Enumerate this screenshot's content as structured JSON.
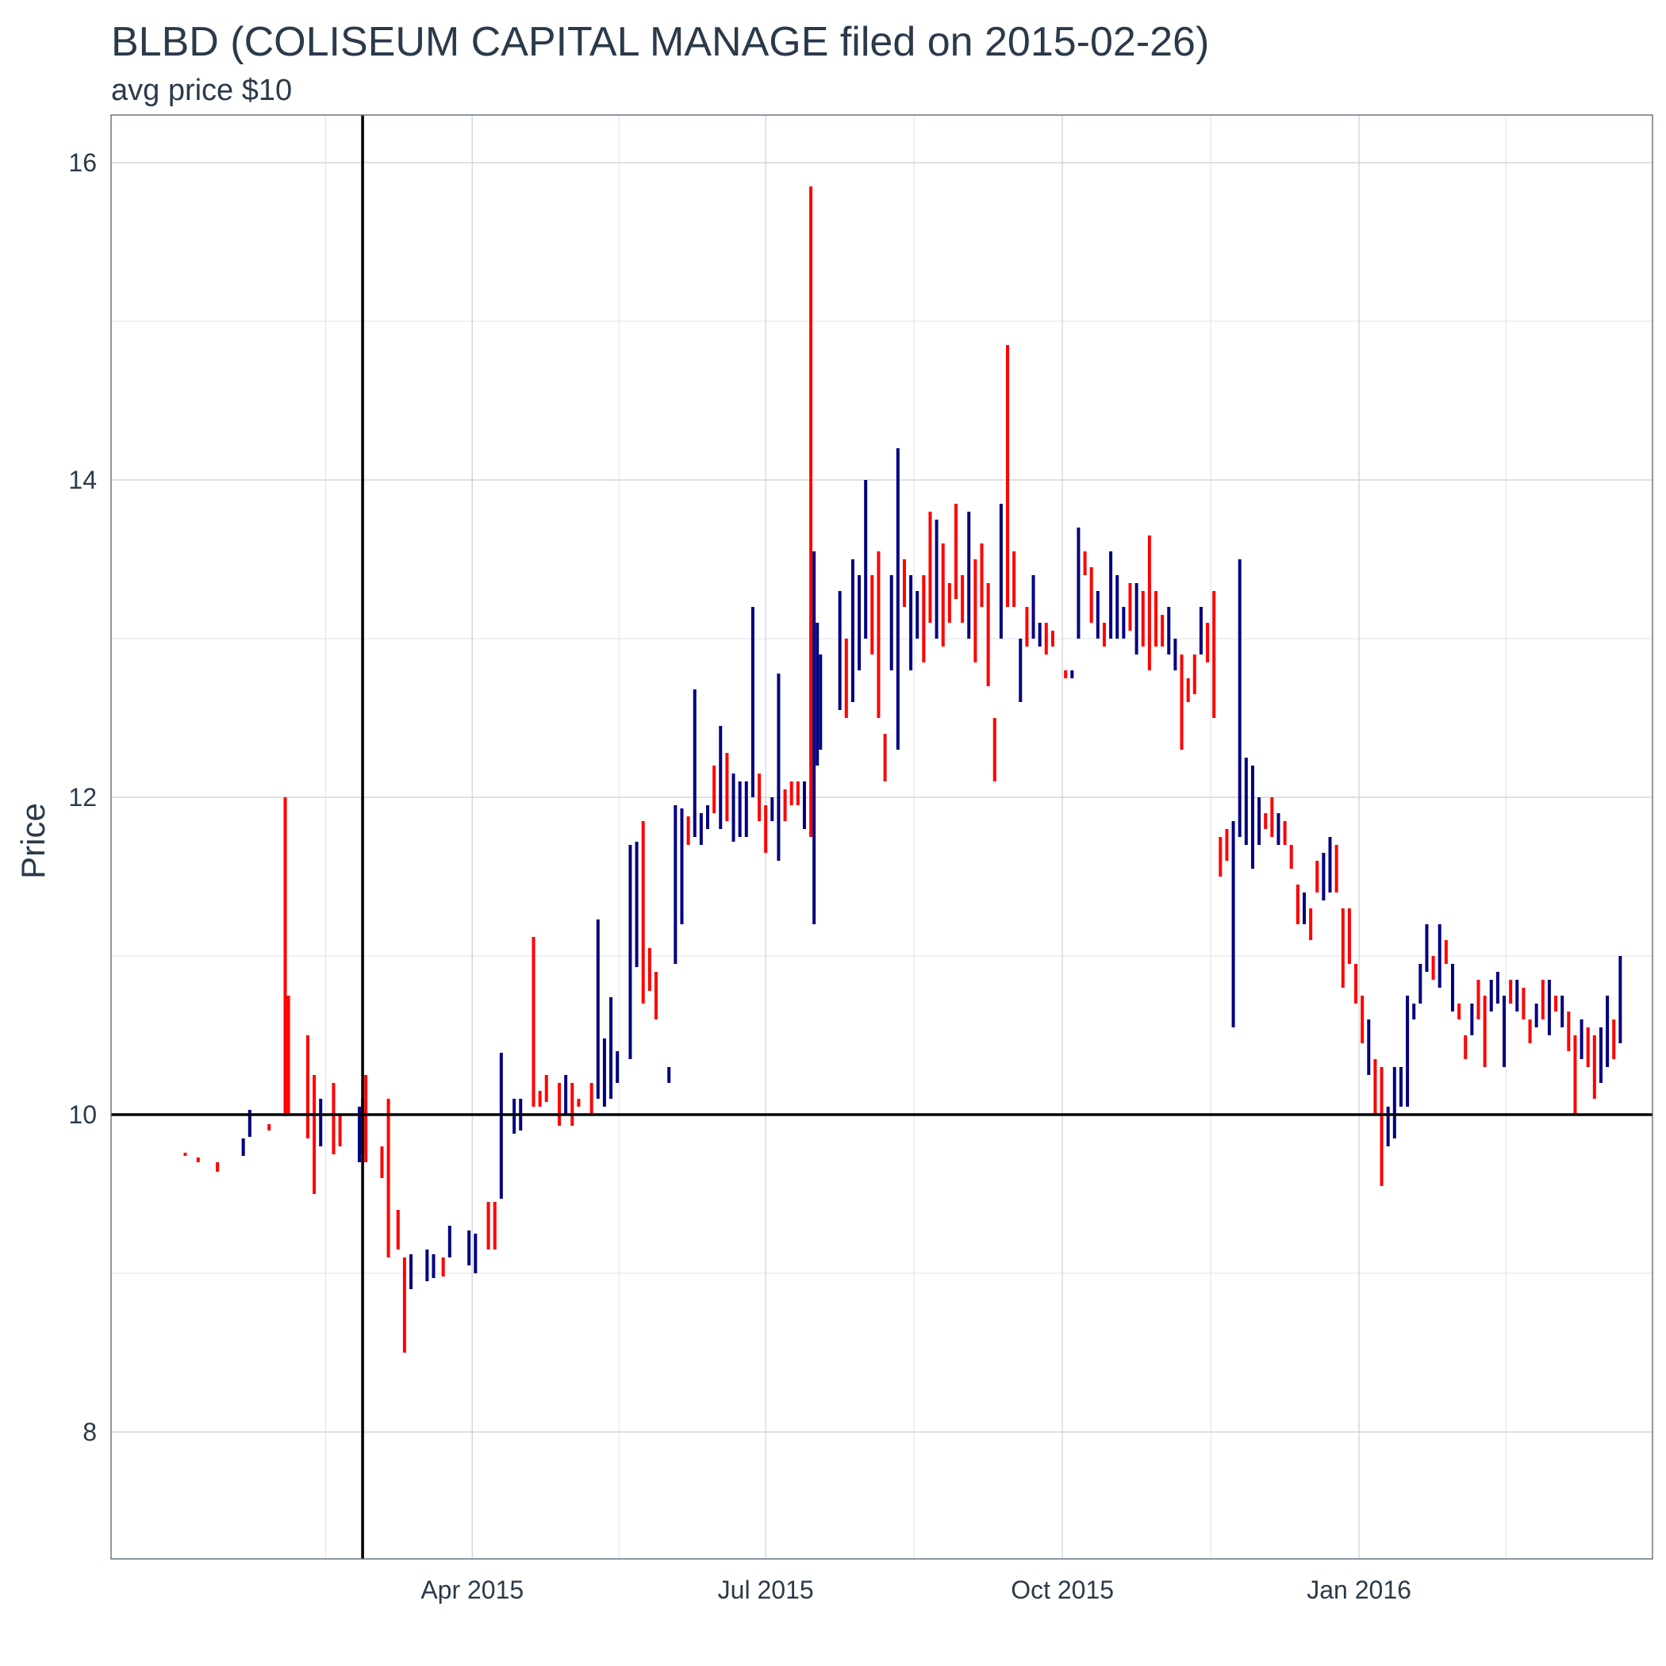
{
  "chart_data": {
    "type": "ohlc",
    "title": "BLBD (COLISEUM CAPITAL MANAGE filed on 2015-02-26)",
    "subtitle": "avg price $10",
    "ylabel": "Price",
    "xlabel": "",
    "xlim": [
      "2014-12-10",
      "2016-04-01"
    ],
    "ylim": [
      7.2,
      16.3
    ],
    "x_ticks": [
      {
        "date": "2015-04-01",
        "label": "Apr 2015"
      },
      {
        "date": "2015-07-01",
        "label": "Jul 2015"
      },
      {
        "date": "2015-10-01",
        "label": "Oct 2015"
      },
      {
        "date": "2016-01-01",
        "label": "Jan 2016"
      }
    ],
    "y_ticks": [
      8,
      10,
      12,
      14,
      16
    ],
    "grid": true,
    "legend": "none",
    "colors": {
      "up": "#00007f",
      "down": "#ff0000",
      "reference": "#000000",
      "text": "#2b3a4a",
      "grid": "#d3d6da"
    },
    "reference_lines": {
      "vertical_date": "2015-02-26",
      "horizontal_price": 10
    },
    "bars": [
      [
        "2015-01-02",
        9.76,
        9.74,
        "down"
      ],
      [
        "2015-01-06",
        9.73,
        9.7,
        "down"
      ],
      [
        "2015-01-12",
        9.7,
        9.64,
        "down"
      ],
      [
        "2015-01-20",
        9.85,
        9.74,
        "up"
      ],
      [
        "2015-01-22",
        10.03,
        9.86,
        "up"
      ],
      [
        "2015-01-28",
        9.94,
        9.9,
        "down"
      ],
      [
        "2015-02-02",
        12.0,
        9.99,
        "down"
      ],
      [
        "2015-02-03",
        10.75,
        10.0,
        "down"
      ],
      [
        "2015-02-09",
        10.5,
        9.85,
        "down"
      ],
      [
        "2015-02-11",
        10.25,
        9.5,
        "down"
      ],
      [
        "2015-02-13",
        10.1,
        9.8,
        "up"
      ],
      [
        "2015-02-17",
        10.2,
        9.75,
        "down"
      ],
      [
        "2015-02-19",
        10.0,
        9.8,
        "down"
      ],
      [
        "2015-02-25",
        10.05,
        9.7,
        "up"
      ],
      [
        "2015-02-26",
        10.1,
        9.75,
        "down"
      ],
      [
        "2015-02-27",
        10.25,
        9.7,
        "down"
      ],
      [
        "2015-03-04",
        9.8,
        9.6,
        "down"
      ],
      [
        "2015-03-06",
        10.1,
        9.1,
        "down"
      ],
      [
        "2015-03-09",
        9.4,
        9.15,
        "down"
      ],
      [
        "2015-03-11",
        9.1,
        8.5,
        "down"
      ],
      [
        "2015-03-13",
        9.12,
        8.9,
        "up"
      ],
      [
        "2015-03-18",
        9.15,
        8.95,
        "up"
      ],
      [
        "2015-03-20",
        9.12,
        8.97,
        "up"
      ],
      [
        "2015-03-23",
        9.1,
        8.98,
        "down"
      ],
      [
        "2015-03-25",
        9.3,
        9.1,
        "up"
      ],
      [
        "2015-03-31",
        9.27,
        9.05,
        "up"
      ],
      [
        "2015-04-02",
        9.25,
        9.0,
        "up"
      ],
      [
        "2015-04-06",
        9.45,
        9.15,
        "down"
      ],
      [
        "2015-04-08",
        9.45,
        9.15,
        "down"
      ],
      [
        "2015-04-10",
        10.39,
        9.47,
        "up"
      ],
      [
        "2015-04-14",
        10.1,
        9.88,
        "up"
      ],
      [
        "2015-04-16",
        10.1,
        9.9,
        "up"
      ],
      [
        "2015-04-20",
        11.12,
        10.05,
        "down"
      ],
      [
        "2015-04-22",
        10.15,
        10.05,
        "down"
      ],
      [
        "2015-04-24",
        10.25,
        10.08,
        "down"
      ],
      [
        "2015-04-28",
        10.2,
        9.93,
        "down"
      ],
      [
        "2015-04-30",
        10.25,
        10.0,
        "up"
      ],
      [
        "2015-05-02",
        10.2,
        9.93,
        "down"
      ],
      [
        "2015-05-04",
        10.1,
        10.05,
        "down"
      ],
      [
        "2015-05-08",
        10.2,
        10.0,
        "down"
      ],
      [
        "2015-05-10",
        11.23,
        10.1,
        "up"
      ],
      [
        "2015-05-12",
        10.48,
        10.05,
        "up"
      ],
      [
        "2015-05-14",
        10.74,
        10.1,
        "up"
      ],
      [
        "2015-05-16",
        10.4,
        10.2,
        "up"
      ],
      [
        "2015-05-20",
        11.7,
        10.35,
        "up"
      ],
      [
        "2015-05-22",
        11.72,
        10.93,
        "up"
      ],
      [
        "2015-05-24",
        11.85,
        10.7,
        "down"
      ],
      [
        "2015-05-26",
        11.05,
        10.78,
        "down"
      ],
      [
        "2015-05-28",
        10.9,
        10.6,
        "down"
      ],
      [
        "2015-06-01",
        10.3,
        10.2,
        "up"
      ],
      [
        "2015-06-03",
        11.95,
        10.95,
        "up"
      ],
      [
        "2015-06-05",
        11.93,
        11.2,
        "up"
      ],
      [
        "2015-06-07",
        11.88,
        11.7,
        "down"
      ],
      [
        "2015-06-09",
        12.68,
        11.75,
        "up"
      ],
      [
        "2015-06-11",
        11.9,
        11.7,
        "up"
      ],
      [
        "2015-06-13",
        11.95,
        11.8,
        "up"
      ],
      [
        "2015-06-15",
        12.2,
        11.9,
        "down"
      ],
      [
        "2015-06-17",
        12.45,
        11.8,
        "up"
      ],
      [
        "2015-06-19",
        12.28,
        11.85,
        "down"
      ],
      [
        "2015-06-21",
        12.15,
        11.72,
        "up"
      ],
      [
        "2015-06-23",
        12.1,
        11.75,
        "up"
      ],
      [
        "2015-06-25",
        12.1,
        11.75,
        "up"
      ],
      [
        "2015-06-27",
        13.2,
        12.0,
        "up"
      ],
      [
        "2015-06-29",
        12.15,
        11.85,
        "down"
      ],
      [
        "2015-07-01",
        11.95,
        11.65,
        "down"
      ],
      [
        "2015-07-03",
        12.0,
        11.85,
        "up"
      ],
      [
        "2015-07-05",
        12.78,
        11.6,
        "up"
      ],
      [
        "2015-07-07",
        12.05,
        11.85,
        "down"
      ],
      [
        "2015-07-09",
        12.1,
        11.95,
        "down"
      ],
      [
        "2015-07-11",
        12.1,
        11.95,
        "down"
      ],
      [
        "2015-07-13",
        12.1,
        11.8,
        "up"
      ],
      [
        "2015-07-15",
        15.85,
        11.75,
        "down"
      ],
      [
        "2015-07-16",
        13.55,
        11.2,
        "up"
      ],
      [
        "2015-07-17",
        13.1,
        12.2,
        "up"
      ],
      [
        "2015-07-18",
        12.9,
        12.3,
        "up"
      ],
      [
        "2015-07-24",
        13.3,
        12.55,
        "up"
      ],
      [
        "2015-07-26",
        13.0,
        12.5,
        "down"
      ],
      [
        "2015-07-28",
        13.5,
        12.6,
        "up"
      ],
      [
        "2015-07-30",
        13.4,
        12.8,
        "up"
      ],
      [
        "2015-08-01",
        14.0,
        13.0,
        "up"
      ],
      [
        "2015-08-03",
        13.4,
        12.9,
        "down"
      ],
      [
        "2015-08-05",
        13.55,
        12.5,
        "down"
      ],
      [
        "2015-08-07",
        12.4,
        12.1,
        "down"
      ],
      [
        "2015-08-09",
        13.4,
        12.8,
        "up"
      ],
      [
        "2015-08-11",
        14.2,
        12.3,
        "up"
      ],
      [
        "2015-08-13",
        13.5,
        13.2,
        "down"
      ],
      [
        "2015-08-15",
        13.4,
        12.8,
        "up"
      ],
      [
        "2015-08-17",
        13.3,
        13.0,
        "up"
      ],
      [
        "2015-08-19",
        13.4,
        12.85,
        "down"
      ],
      [
        "2015-08-21",
        13.8,
        13.1,
        "down"
      ],
      [
        "2015-08-23",
        13.75,
        13.0,
        "up"
      ],
      [
        "2015-08-25",
        13.6,
        12.95,
        "down"
      ],
      [
        "2015-08-27",
        13.35,
        13.1,
        "down"
      ],
      [
        "2015-08-29",
        13.85,
        13.25,
        "down"
      ],
      [
        "2015-08-31",
        13.4,
        13.1,
        "down"
      ],
      [
        "2015-09-02",
        13.8,
        13.0,
        "up"
      ],
      [
        "2015-09-04",
        13.5,
        12.85,
        "down"
      ],
      [
        "2015-09-06",
        13.6,
        13.2,
        "down"
      ],
      [
        "2015-09-08",
        13.35,
        12.7,
        "down"
      ],
      [
        "2015-09-10",
        12.5,
        12.1,
        "down"
      ],
      [
        "2015-09-12",
        13.85,
        13.0,
        "up"
      ],
      [
        "2015-09-14",
        14.85,
        13.2,
        "down"
      ],
      [
        "2015-09-16",
        13.55,
        13.2,
        "down"
      ],
      [
        "2015-09-18",
        13.0,
        12.6,
        "up"
      ],
      [
        "2015-09-20",
        13.2,
        12.95,
        "down"
      ],
      [
        "2015-09-22",
        13.4,
        13.0,
        "up"
      ],
      [
        "2015-09-24",
        13.1,
        12.95,
        "up"
      ],
      [
        "2015-09-26",
        13.1,
        12.9,
        "down"
      ],
      [
        "2015-09-28",
        13.05,
        12.95,
        "down"
      ],
      [
        "2015-10-02",
        12.8,
        12.75,
        "down"
      ],
      [
        "2015-10-04",
        12.8,
        12.75,
        "up"
      ],
      [
        "2015-10-06",
        13.7,
        13.0,
        "up"
      ],
      [
        "2015-10-08",
        13.55,
        13.4,
        "down"
      ],
      [
        "2015-10-10",
        13.45,
        13.1,
        "down"
      ],
      [
        "2015-10-12",
        13.3,
        13.0,
        "up"
      ],
      [
        "2015-10-14",
        13.1,
        12.95,
        "down"
      ],
      [
        "2015-10-16",
        13.55,
        13.0,
        "up"
      ],
      [
        "2015-10-18",
        13.4,
        13.0,
        "up"
      ],
      [
        "2015-10-20",
        13.2,
        13.0,
        "up"
      ],
      [
        "2015-10-22",
        13.35,
        13.05,
        "down"
      ],
      [
        "2015-10-24",
        13.35,
        12.9,
        "up"
      ],
      [
        "2015-10-26",
        13.3,
        12.95,
        "down"
      ],
      [
        "2015-10-28",
        13.65,
        12.8,
        "down"
      ],
      [
        "2015-10-30",
        13.3,
        12.95,
        "down"
      ],
      [
        "2015-11-01",
        13.15,
        12.95,
        "down"
      ],
      [
        "2015-11-03",
        13.2,
        12.9,
        "up"
      ],
      [
        "2015-11-05",
        13.0,
        12.8,
        "up"
      ],
      [
        "2015-11-07",
        12.9,
        12.3,
        "down"
      ],
      [
        "2015-11-09",
        12.75,
        12.6,
        "down"
      ],
      [
        "2015-11-11",
        12.9,
        12.65,
        "down"
      ],
      [
        "2015-11-13",
        13.2,
        12.9,
        "up"
      ],
      [
        "2015-11-15",
        13.1,
        12.85,
        "down"
      ],
      [
        "2015-11-17",
        13.3,
        12.5,
        "down"
      ],
      [
        "2015-11-19",
        11.75,
        11.5,
        "down"
      ],
      [
        "2015-11-21",
        11.8,
        11.6,
        "down"
      ],
      [
        "2015-11-23",
        11.85,
        10.55,
        "up"
      ],
      [
        "2015-11-25",
        13.5,
        11.75,
        "up"
      ],
      [
        "2015-11-27",
        12.25,
        11.7,
        "up"
      ],
      [
        "2015-11-29",
        12.2,
        11.55,
        "up"
      ],
      [
        "2015-12-01",
        12.0,
        11.7,
        "up"
      ],
      [
        "2015-12-03",
        11.9,
        11.8,
        "down"
      ],
      [
        "2015-12-05",
        12.0,
        11.75,
        "down"
      ],
      [
        "2015-12-07",
        11.9,
        11.7,
        "up"
      ],
      [
        "2015-12-09",
        11.85,
        11.7,
        "down"
      ],
      [
        "2015-12-11",
        11.7,
        11.55,
        "down"
      ],
      [
        "2015-12-13",
        11.45,
        11.2,
        "down"
      ],
      [
        "2015-12-15",
        11.4,
        11.2,
        "up"
      ],
      [
        "2015-12-17",
        11.3,
        11.1,
        "down"
      ],
      [
        "2015-12-19",
        11.6,
        11.4,
        "down"
      ],
      [
        "2015-12-21",
        11.65,
        11.35,
        "up"
      ],
      [
        "2015-12-23",
        11.75,
        11.4,
        "up"
      ],
      [
        "2015-12-25",
        11.7,
        11.4,
        "down"
      ],
      [
        "2015-12-27",
        11.3,
        10.8,
        "down"
      ],
      [
        "2015-12-29",
        11.3,
        10.95,
        "down"
      ],
      [
        "2015-12-31",
        10.95,
        10.7,
        "down"
      ],
      [
        "2016-01-02",
        10.75,
        10.45,
        "down"
      ],
      [
        "2016-01-04",
        10.6,
        10.25,
        "up"
      ],
      [
        "2016-01-06",
        10.35,
        10.0,
        "down"
      ],
      [
        "2016-01-08",
        10.3,
        9.55,
        "down"
      ],
      [
        "2016-01-10",
        10.05,
        9.8,
        "up"
      ],
      [
        "2016-01-12",
        10.3,
        9.85,
        "up"
      ],
      [
        "2016-01-14",
        10.3,
        10.05,
        "up"
      ],
      [
        "2016-01-16",
        10.75,
        10.05,
        "up"
      ],
      [
        "2016-01-18",
        10.7,
        10.6,
        "up"
      ],
      [
        "2016-01-20",
        10.95,
        10.7,
        "up"
      ],
      [
        "2016-01-22",
        11.2,
        10.9,
        "up"
      ],
      [
        "2016-01-24",
        11.0,
        10.85,
        "down"
      ],
      [
        "2016-01-26",
        11.2,
        10.8,
        "up"
      ],
      [
        "2016-01-28",
        11.1,
        10.95,
        "down"
      ],
      [
        "2016-01-30",
        10.95,
        10.65,
        "up"
      ],
      [
        "2016-02-01",
        10.7,
        10.6,
        "down"
      ],
      [
        "2016-02-03",
        10.5,
        10.35,
        "down"
      ],
      [
        "2016-02-05",
        10.7,
        10.5,
        "up"
      ],
      [
        "2016-02-07",
        10.85,
        10.6,
        "down"
      ],
      [
        "2016-02-09",
        10.75,
        10.3,
        "down"
      ],
      [
        "2016-02-11",
        10.85,
        10.65,
        "up"
      ],
      [
        "2016-02-13",
        10.9,
        10.7,
        "up"
      ],
      [
        "2016-02-15",
        10.75,
        10.3,
        "up"
      ],
      [
        "2016-02-17",
        10.85,
        10.7,
        "down"
      ],
      [
        "2016-02-19",
        10.85,
        10.65,
        "up"
      ],
      [
        "2016-02-21",
        10.8,
        10.6,
        "down"
      ],
      [
        "2016-02-23",
        10.6,
        10.45,
        "down"
      ],
      [
        "2016-02-25",
        10.7,
        10.55,
        "up"
      ],
      [
        "2016-02-27",
        10.85,
        10.6,
        "down"
      ],
      [
        "2016-02-29",
        10.85,
        10.5,
        "up"
      ],
      [
        "2016-03-02",
        10.75,
        10.65,
        "down"
      ],
      [
        "2016-03-04",
        10.75,
        10.55,
        "up"
      ],
      [
        "2016-03-06",
        10.65,
        10.4,
        "down"
      ],
      [
        "2016-03-08",
        10.5,
        10.0,
        "down"
      ],
      [
        "2016-03-10",
        10.6,
        10.35,
        "up"
      ],
      [
        "2016-03-12",
        10.55,
        10.3,
        "down"
      ],
      [
        "2016-03-14",
        10.5,
        10.1,
        "down"
      ],
      [
        "2016-03-16",
        10.55,
        10.2,
        "up"
      ],
      [
        "2016-03-18",
        10.75,
        10.3,
        "up"
      ],
      [
        "2016-03-20",
        10.6,
        10.35,
        "down"
      ],
      [
        "2016-03-22",
        11.0,
        10.45,
        "up"
      ]
    ]
  }
}
